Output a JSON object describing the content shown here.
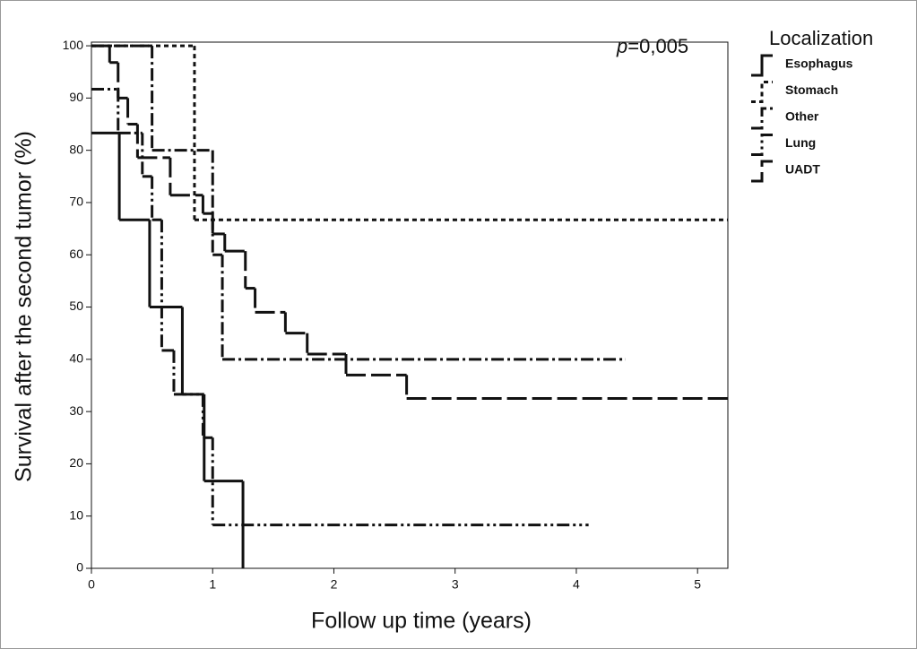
{
  "chart_data": {
    "type": "step",
    "xlabel": "Follow up time (years)",
    "ylabel": "Survival after the second tumor (%)",
    "annotation": [
      "p",
      "=0,005"
    ],
    "legend_title": "Localization",
    "legend": "right",
    "xlim": [
      0,
      5.25
    ],
    "xticks": [
      0,
      1,
      2,
      3,
      4,
      5
    ],
    "ylim": [
      0,
      100.7
    ],
    "yticks": [
      0,
      10,
      20,
      30,
      40,
      50,
      60,
      70,
      80,
      90,
      100
    ],
    "series": [
      {
        "name": "Esophagus",
        "color": "#111111",
        "dash": "",
        "x": [
          0,
          0.23,
          0.48,
          0.75,
          0.93,
          1.25
        ],
        "values": [
          83.3,
          66.7,
          50,
          33.3,
          16.7,
          0
        ]
      },
      {
        "name": "Stomach",
        "color": "#111111",
        "dash": "5 4",
        "x": [
          0,
          0.85,
          5.25
        ],
        "values": [
          100,
          66.7,
          66.7
        ]
      },
      {
        "name": "Other",
        "color": "#111111",
        "dash": "14 4 3 4",
        "x": [
          0,
          0.5,
          1.0,
          1.08,
          4.4
        ],
        "values": [
          100,
          80,
          60,
          40,
          40
        ]
      },
      {
        "name": "Lung",
        "color": "#111111",
        "dash": "14 4 3 4 3 4",
        "x": [
          0,
          0.22,
          0.42,
          0.5,
          0.58,
          0.68,
          0.92,
          1.0,
          4.1
        ],
        "values": [
          91.7,
          83.3,
          75,
          66.7,
          41.7,
          33.3,
          25,
          8.3,
          8.3
        ]
      },
      {
        "name": "UADT",
        "color": "#111111",
        "dash": "22 6",
        "x": [
          0,
          0.15,
          0.22,
          0.3,
          0.38,
          0.65,
          0.92,
          1.0,
          1.1,
          1.27,
          1.35,
          1.6,
          1.78,
          2.1,
          2.6,
          5.25
        ],
        "values": [
          100,
          96.8,
          90,
          85,
          78.6,
          71.4,
          67.9,
          64,
          60.7,
          53.6,
          49,
          45,
          41,
          37,
          32.5,
          32.5
        ]
      }
    ]
  }
}
